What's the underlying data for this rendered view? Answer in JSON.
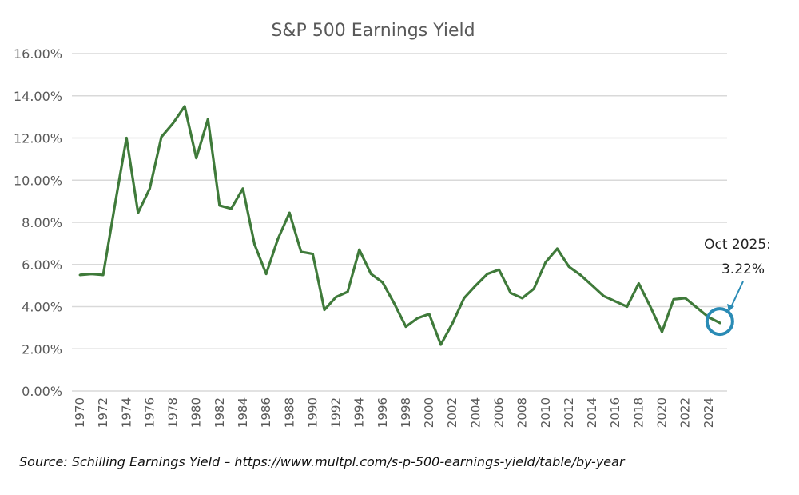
{
  "chart_data": {
    "type": "line",
    "title": "S&P 500 Earnings Yield",
    "xlabel": "",
    "ylabel": "",
    "ylim": [
      0,
      16
    ],
    "yticks": [
      "0.00%",
      "2.00%",
      "4.00%",
      "6.00%",
      "8.00%",
      "10.00%",
      "12.00%",
      "14.00%",
      "16.00%"
    ],
    "xticks": [
      "1970",
      "1972",
      "1974",
      "1976",
      "1978",
      "1980",
      "1982",
      "1984",
      "1986",
      "1988",
      "1990",
      "1992",
      "1994",
      "1996",
      "1998",
      "2000",
      "2002",
      "2004",
      "2006",
      "2008",
      "2010",
      "2012",
      "2014",
      "2016",
      "2018",
      "2020",
      "2022",
      "2024"
    ],
    "grid": true,
    "series": [
      {
        "name": "Earnings Yield (%)",
        "color": "#3f7a3a",
        "x": [
          1970,
          1971,
          1972,
          1973,
          1974,
          1975,
          1976,
          1977,
          1978,
          1979,
          1980,
          1981,
          1982,
          1983,
          1984,
          1985,
          1986,
          1987,
          1988,
          1989,
          1990,
          1991,
          1992,
          1993,
          1994,
          1995,
          1996,
          1997,
          1998,
          1999,
          2000,
          2001,
          2002,
          2003,
          2004,
          2005,
          2006,
          2007,
          2008,
          2009,
          2010,
          2011,
          2012,
          2013,
          2014,
          2015,
          2016,
          2017,
          2018,
          2019,
          2020,
          2021,
          2022,
          2023,
          2024,
          2025
        ],
        "values": [
          5.5,
          5.55,
          5.5,
          8.8,
          12.0,
          8.45,
          9.6,
          12.05,
          12.7,
          13.5,
          11.05,
          12.9,
          8.8,
          8.65,
          9.6,
          6.95,
          5.55,
          7.2,
          8.45,
          6.6,
          6.5,
          3.85,
          4.45,
          4.7,
          6.7,
          5.55,
          5.15,
          4.15,
          3.05,
          3.45,
          3.65,
          2.2,
          3.2,
          4.4,
          5.0,
          5.55,
          5.75,
          4.65,
          4.4,
          4.85,
          6.1,
          6.75,
          5.9,
          5.5,
          5.0,
          4.5,
          4.25,
          4.0,
          5.1,
          4.0,
          2.8,
          4.35,
          4.4,
          3.95,
          3.5,
          3.22
        ]
      }
    ],
    "annotation": {
      "line1": "Oct 2025:",
      "line2": "3.22%",
      "color": "#2a8bb5"
    }
  },
  "source": "Source: Schilling Earnings Yield – https://www.multpl.com/s-p-500-earnings-yield/table/by-year"
}
